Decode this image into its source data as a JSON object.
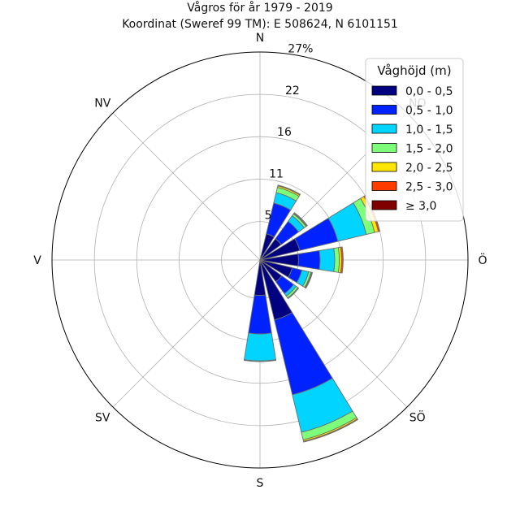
{
  "chart_data": {
    "type": "wind-rose",
    "title": "Vågros för år 1979 - 2019",
    "subtitle": "Koordinat (Sweref 99 TM): E 508624, N 6101151",
    "directions": [
      "N",
      "NO",
      "Ö",
      "SÖ",
      "S",
      "SV",
      "V",
      "NV"
    ],
    "compass_labels": [
      {
        "angle": 0,
        "text": "N"
      },
      {
        "angle": 45,
        "text": "NO"
      },
      {
        "angle": 90,
        "text": "Ö"
      },
      {
        "angle": 135,
        "text": "SÖ"
      },
      {
        "angle": 180,
        "text": "S"
      },
      {
        "angle": 225,
        "text": "SV"
      },
      {
        "angle": 270,
        "text": "V"
      },
      {
        "angle": 315,
        "text": "NV"
      }
    ],
    "radial_ticks": [
      "5",
      "11",
      "16",
      "22",
      "27%"
    ],
    "radial_tick_values": [
      5,
      10.5,
      16,
      21.5,
      27
    ],
    "r_max": 27,
    "legend_title": "Våghöjd (m)",
    "legend_placement": "top-right",
    "bins": [
      {
        "label": "0,0 - 0,5",
        "color": "#000080"
      },
      {
        "label": "0,5 - 1,0",
        "color": "#0022ff"
      },
      {
        "label": "1,0 - 1,5",
        "color": "#00d4ff"
      },
      {
        "label": "1,5 - 2,0",
        "color": "#7dff7a"
      },
      {
        "label": "2,0 - 2,5",
        "color": "#ffe600"
      },
      {
        "label": "2,5 - 3,0",
        "color": "#ff3c00"
      },
      {
        "label": "≥ 3,0",
        "color": "#800000"
      }
    ],
    "sectors": [
      {
        "direction_deg": 22.5,
        "cumulative": [
          3.5,
          7.6,
          9.0,
          9.7,
          9.9,
          10.0,
          10.0
        ]
      },
      {
        "direction_deg": 45,
        "cumulative": [
          3.4,
          6.2,
          7.1,
          7.4,
          7.5,
          7.6,
          7.6
        ]
      },
      {
        "direction_deg": 67.5,
        "cumulative": [
          5.3,
          10.4,
          14.2,
          15.3,
          15.8,
          16.0,
          16.0
        ]
      },
      {
        "direction_deg": 90,
        "cumulative": [
          5.0,
          7.8,
          9.7,
          10.3,
          10.6,
          10.8,
          10.8
        ]
      },
      {
        "direction_deg": 112.5,
        "cumulative": [
          4.3,
          5.6,
          6.5,
          6.8,
          6.9,
          7.0,
          7.0
        ]
      },
      {
        "direction_deg": 135,
        "cumulative": [
          3.5,
          5.4,
          5.8,
          6.1,
          6.2,
          6.2,
          6.2
        ]
      },
      {
        "direction_deg": 157.5,
        "cumulative": [
          8.0,
          18.0,
          23.0,
          24.0,
          24.2,
          24.3,
          24.3
        ]
      },
      {
        "direction_deg": 180,
        "cumulative": [
          4.6,
          9.6,
          13.1,
          13.2,
          13.2,
          13.2,
          13.2
        ]
      },
      {
        "direction_deg": 202.5,
        "cumulative": [
          0,
          0,
          0,
          0,
          0,
          0,
          0
        ]
      },
      {
        "direction_deg": 225,
        "cumulative": [
          0,
          0,
          0,
          0,
          0,
          0,
          0
        ]
      },
      {
        "direction_deg": 247.5,
        "cumulative": [
          0,
          0,
          0,
          0,
          0,
          0,
          0
        ]
      },
      {
        "direction_deg": 270,
        "cumulative": [
          0,
          0,
          0,
          0,
          0,
          0,
          0
        ]
      },
      {
        "direction_deg": 292.5,
        "cumulative": [
          0,
          0,
          0,
          0,
          0,
          0,
          0
        ]
      },
      {
        "direction_deg": 315,
        "cumulative": [
          0,
          0,
          0,
          0,
          0,
          0,
          0
        ]
      },
      {
        "direction_deg": 337.5,
        "cumulative": [
          0,
          0,
          0,
          0,
          0,
          0,
          0
        ]
      },
      {
        "direction_deg": 360,
        "cumulative": [
          0,
          0,
          0,
          0,
          0,
          0,
          0
        ]
      }
    ],
    "grid": true
  }
}
